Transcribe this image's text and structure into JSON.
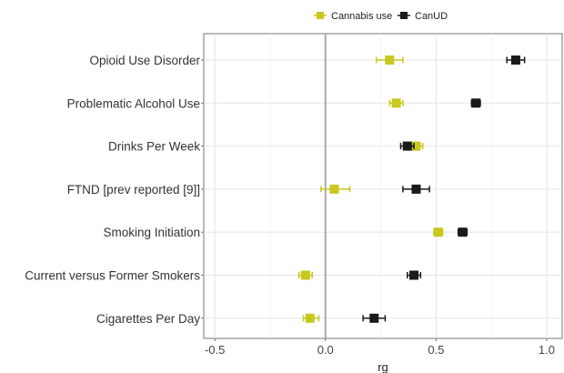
{
  "chart_data": {
    "type": "scatter",
    "subtype": "forest-plot",
    "title": "",
    "xlabel": "rg",
    "ylabel": "",
    "xlim": [
      -0.55,
      1.07
    ],
    "xticks": [
      -0.5,
      0.0,
      0.5,
      1.0
    ],
    "xtick_labels": [
      "-0.5",
      "0.0",
      "0.5",
      "1.0"
    ],
    "reference_line": 0,
    "grid": true,
    "legend_position": "top",
    "categories": [
      "Opioid Use Disorder",
      "Problematic Alcohol Use",
      "Drinks Per Week",
      "FTND [prev reported [9]]",
      "Smoking Initiation",
      "Current versus Former Smokers",
      "Cigarettes Per Day"
    ],
    "series": [
      {
        "name": "Cannabis use",
        "color": "#c8c81e",
        "values": [
          0.29,
          0.32,
          0.41,
          0.04,
          0.51,
          -0.09,
          -0.07
        ],
        "ci_low": [
          0.23,
          0.29,
          0.38,
          -0.02,
          0.49,
          -0.12,
          -0.1
        ],
        "ci_high": [
          0.35,
          0.35,
          0.44,
          0.11,
          0.53,
          -0.06,
          -0.03
        ]
      },
      {
        "name": "CanUD",
        "color": "#1a1a1a",
        "values": [
          0.86,
          0.68,
          0.37,
          0.41,
          0.62,
          0.4,
          0.22
        ],
        "ci_low": [
          0.82,
          0.66,
          0.34,
          0.35,
          0.6,
          0.37,
          0.17
        ],
        "ci_high": [
          0.9,
          0.7,
          0.4,
          0.47,
          0.64,
          0.43,
          0.27
        ]
      }
    ]
  }
}
